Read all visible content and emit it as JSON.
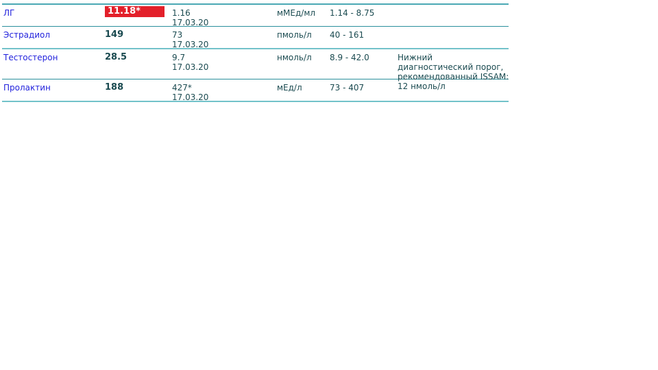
{
  "rows": [
    {
      "name": "ЛГ",
      "result": "11.18*",
      "result_flag": "high",
      "previous": "1.16",
      "previous_date": "17.03.20",
      "unit": "мМЕд/мл",
      "range": "1.14 - 8.75",
      "note": ""
    },
    {
      "name": "Эстрадиол",
      "result": "149",
      "previous": "73",
      "previous_date": "17.03.20",
      "unit": "пмоль/л",
      "range": "40 - 161",
      "note": ""
    },
    {
      "name": "Тестостерон",
      "result": "28.5",
      "previous": "9.7",
      "previous_date": "17.03.20",
      "unit": "нмоль/л",
      "range": "8.9 - 42.0",
      "note": "Нижний диагностический порог, рекомендованный ISSAM: 12 нмоль/л"
    },
    {
      "name": "Пролактин",
      "result": "188",
      "previous": "427*",
      "previous_date": "17.03.20",
      "unit": "мЕд/л",
      "range": "73 - 407",
      "note": ""
    }
  ],
  "colors": {
    "high_flag": "#e3202a",
    "name_text": "#2222dd",
    "divider": "#2a8f9c"
  }
}
